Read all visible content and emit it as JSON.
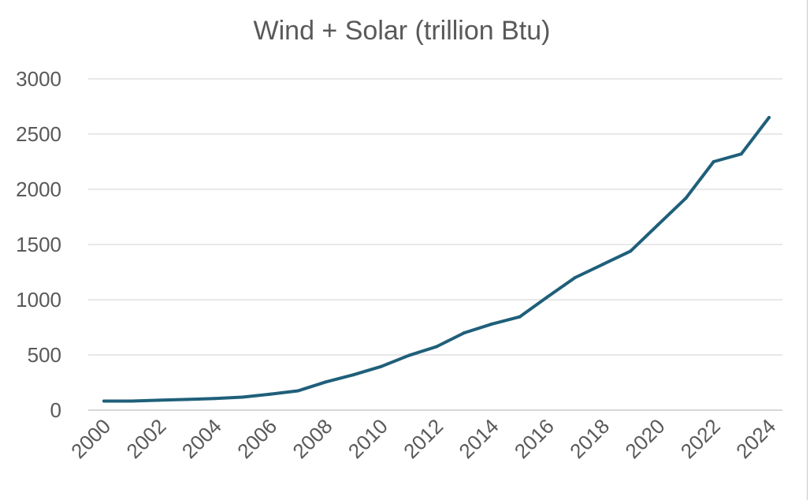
{
  "chart_data": {
    "type": "line",
    "title": "Wind + Solar (trillion Btu)",
    "xlabel": "",
    "ylabel": "",
    "ylim": [
      0,
      3000
    ],
    "xlim": [
      2000,
      2024
    ],
    "grid": true,
    "legend": "none",
    "y_ticks": [
      "0",
      "500",
      "1000",
      "1500",
      "2000",
      "2500",
      "3000"
    ],
    "x_ticks": [
      "2000",
      "2002",
      "2004",
      "2006",
      "2008",
      "2010",
      "2012",
      "2014",
      "2016",
      "2018",
      "2020",
      "2022",
      "2024"
    ],
    "series": [
      {
        "name": "Wind + Solar",
        "color": "#1f5f7a",
        "x": [
          2000,
          2001,
          2002,
          2003,
          2004,
          2005,
          2006,
          2007,
          2008,
          2009,
          2010,
          2011,
          2012,
          2013,
          2014,
          2015,
          2016,
          2017,
          2018,
          2019,
          2020,
          2021,
          2022,
          2023,
          2024
        ],
        "values": [
          82,
          82,
          90,
          97,
          105,
          118,
          145,
          175,
          255,
          320,
          395,
          495,
          575,
          700,
          780,
          845,
          1025,
          1200,
          1320,
          1440,
          1680,
          1920,
          2250,
          2320,
          2650
        ]
      }
    ]
  }
}
